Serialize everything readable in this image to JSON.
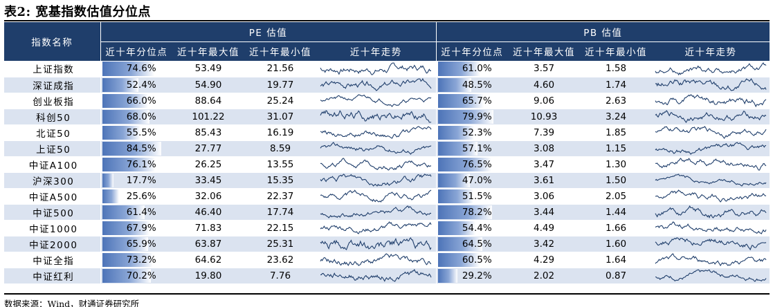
{
  "title": "表2: 宽基指数估值分位点",
  "header": {
    "name_col": "指数名称",
    "pe_group": "PE 估值",
    "pb_group": "PB 估值",
    "cols": [
      "近十年分位点",
      "近十年最大值",
      "近十年最小值",
      "近十年走势"
    ]
  },
  "colors": {
    "header_bg": "#1f3e6b",
    "stripe": "#dbe3f0",
    "bar": "#4d74b8",
    "sparkline": "#1f3e6b"
  },
  "rows": [
    {
      "name": "上证指数",
      "pe": {
        "pct": "74.6%",
        "pct_value": 74.6,
        "max": "53.49",
        "min": "21.56"
      },
      "pb": {
        "pct": "61.0%",
        "pct_value": 61.0,
        "max": "3.57",
        "min": "1.58"
      }
    },
    {
      "name": "深证成指",
      "pe": {
        "pct": "52.4%",
        "pct_value": 52.4,
        "max": "54.90",
        "min": "19.77"
      },
      "pb": {
        "pct": "48.5%",
        "pct_value": 48.5,
        "max": "4.60",
        "min": "1.74"
      }
    },
    {
      "name": "创业板指",
      "pe": {
        "pct": "66.0%",
        "pct_value": 66.0,
        "max": "88.64",
        "min": "25.24"
      },
      "pb": {
        "pct": "65.7%",
        "pct_value": 65.7,
        "max": "9.06",
        "min": "2.63"
      }
    },
    {
      "name": "科创50",
      "pe": {
        "pct": "68.0%",
        "pct_value": 68.0,
        "max": "101.22",
        "min": "31.07"
      },
      "pb": {
        "pct": "79.9%",
        "pct_value": 79.9,
        "max": "10.93",
        "min": "3.24"
      }
    },
    {
      "name": "北证50",
      "pe": {
        "pct": "55.5%",
        "pct_value": 55.5,
        "max": "85.43",
        "min": "16.19"
      },
      "pb": {
        "pct": "52.3%",
        "pct_value": 52.3,
        "max": "7.39",
        "min": "1.85"
      }
    },
    {
      "name": "上证50",
      "pe": {
        "pct": "84.5%",
        "pct_value": 84.5,
        "max": "27.77",
        "min": "8.59"
      },
      "pb": {
        "pct": "57.1%",
        "pct_value": 57.1,
        "max": "3.08",
        "min": "1.15"
      }
    },
    {
      "name": "中证A100",
      "pe": {
        "pct": "76.1%",
        "pct_value": 76.1,
        "max": "26.25",
        "min": "13.55"
      },
      "pb": {
        "pct": "76.5%",
        "pct_value": 76.5,
        "max": "3.47",
        "min": "1.30"
      }
    },
    {
      "name": "沪深300",
      "pe": {
        "pct": "17.7%",
        "pct_value": 17.7,
        "max": "33.45",
        "min": "15.35"
      },
      "pb": {
        "pct": "47.0%",
        "pct_value": 47.0,
        "max": "3.61",
        "min": "1.50"
      }
    },
    {
      "name": "中证A500",
      "pe": {
        "pct": "25.6%",
        "pct_value": 25.6,
        "max": "32.06",
        "min": "22.37"
      },
      "pb": {
        "pct": "51.5%",
        "pct_value": 51.5,
        "max": "3.06",
        "min": "2.05"
      }
    },
    {
      "name": "中证500",
      "pe": {
        "pct": "61.4%",
        "pct_value": 61.4,
        "max": "46.40",
        "min": "17.74"
      },
      "pb": {
        "pct": "78.2%",
        "pct_value": 78.2,
        "max": "3.44",
        "min": "1.44"
      }
    },
    {
      "name": "中证1000",
      "pe": {
        "pct": "67.9%",
        "pct_value": 67.9,
        "max": "71.83",
        "min": "22.15"
      },
      "pb": {
        "pct": "54.4%",
        "pct_value": 54.4,
        "max": "4.49",
        "min": "1.66"
      }
    },
    {
      "name": "中证2000",
      "pe": {
        "pct": "65.9%",
        "pct_value": 65.9,
        "max": "63.87",
        "min": "25.31"
      },
      "pb": {
        "pct": "64.5%",
        "pct_value": 64.5,
        "max": "3.42",
        "min": "1.60"
      }
    },
    {
      "name": "中证全指",
      "pe": {
        "pct": "73.2%",
        "pct_value": 73.2,
        "max": "64.62",
        "min": "23.62"
      },
      "pb": {
        "pct": "60.5%",
        "pct_value": 60.5,
        "max": "4.29",
        "min": "1.64"
      }
    },
    {
      "name": "中证红利",
      "pe": {
        "pct": "70.2%",
        "pct_value": 70.2,
        "max": "19.80",
        "min": "7.76"
      },
      "pb": {
        "pct": "29.2%",
        "pct_value": 29.2,
        "max": "2.02",
        "min": "0.87"
      }
    }
  ],
  "footer": "数据来源：Wind，财通证券研究所"
}
